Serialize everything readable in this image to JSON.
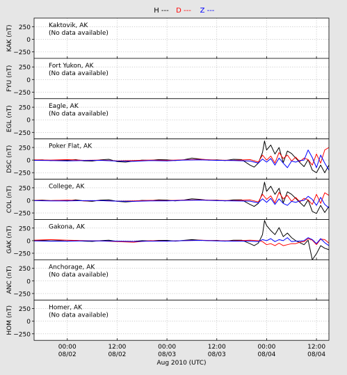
{
  "chart_data": {
    "type": "line",
    "xlabel": "Aug 2010 (UTC)",
    "x_ticks": [
      {
        "time": "00:00",
        "date": "08/02"
      },
      {
        "time": "12:00",
        "date": "08/02"
      },
      {
        "time": "00:00",
        "date": "08/03"
      },
      {
        "time": "12:00",
        "date": "08/03"
      },
      {
        "time": "00:00",
        "date": "08/04"
      },
      {
        "time": "12:00",
        "date": "08/04"
      }
    ],
    "x_range_hours": [
      -8,
      63
    ],
    "legend": [
      {
        "label": "H ---",
        "color": "#000000"
      },
      {
        "label": "D ---",
        "color": "#ff0000"
      },
      {
        "label": "Z ---",
        "color": "#0000ff"
      }
    ],
    "y_ticks": [
      "250",
      "0",
      "−250"
    ],
    "ylim": [
      -380,
      420
    ],
    "stations": [
      {
        "code": "KAK",
        "ylabel": "KAK (nT)",
        "name": "Kaktovik, AK",
        "status": "(No data available)",
        "has_data": false
      },
      {
        "code": "FYU",
        "ylabel": "FYU (nT)",
        "name": "Fort Yukon, AK",
        "status": "(No data available)",
        "has_data": false
      },
      {
        "code": "EGL",
        "ylabel": "EGL (nT)",
        "name": "Eagle, AK",
        "status": "(No data available)",
        "has_data": false
      },
      {
        "code": "DSC",
        "ylabel": "DSC (nT)",
        "name": "Poker Flat, AK",
        "status": "",
        "has_data": true,
        "series": [
          {
            "name": "H",
            "color": "#000000",
            "x": [
              -8,
              -6,
              -4,
              -2,
              0,
              2,
              4,
              6,
              8,
              10,
              12,
              14,
              16,
              18,
              20,
              22,
              24,
              26,
              28,
              30,
              32,
              34,
              36,
              38,
              40,
              42,
              44,
              45,
              46,
              47,
              47.5,
              48,
              49,
              50,
              51,
              52,
              53,
              54,
              55,
              56,
              57,
              58,
              59,
              60,
              61,
              62,
              63
            ],
            "y": [
              0,
              5,
              -10,
              0,
              -5,
              10,
              -15,
              -20,
              5,
              15,
              -30,
              -40,
              -20,
              0,
              -5,
              10,
              5,
              -10,
              5,
              40,
              20,
              0,
              5,
              -10,
              15,
              10,
              -100,
              -140,
              -60,
              150,
              380,
              200,
              300,
              120,
              250,
              -50,
              180,
              130,
              40,
              -50,
              -130,
              10,
              -200,
              -250,
              -100,
              -250,
              -100
            ]
          },
          {
            "name": "D",
            "color": "#ff0000",
            "x": [
              -8,
              -4,
              0,
              4,
              8,
              12,
              16,
              20,
              24,
              28,
              32,
              36,
              40,
              44,
              46,
              47,
              48,
              49,
              50,
              51,
              52,
              53,
              54,
              55,
              56,
              57,
              58,
              59,
              60,
              61,
              62,
              63
            ],
            "y": [
              5,
              0,
              10,
              -5,
              0,
              -15,
              -10,
              0,
              -5,
              5,
              15,
              0,
              -5,
              10,
              -40,
              100,
              0,
              80,
              -60,
              150,
              30,
              100,
              -20,
              60,
              -30,
              40,
              10,
              -100,
              120,
              -60,
              200,
              250
            ]
          },
          {
            "name": "Z",
            "color": "#0000ff",
            "x": [
              -8,
              -4,
              0,
              4,
              8,
              12,
              16,
              20,
              24,
              28,
              32,
              36,
              40,
              44,
              46,
              47,
              48,
              49,
              50,
              51,
              52,
              53,
              54,
              55,
              56,
              57,
              58,
              59,
              60,
              61,
              62,
              63
            ],
            "y": [
              -5,
              -10,
              -15,
              -10,
              -5,
              -20,
              -25,
              -10,
              -15,
              0,
              5,
              -5,
              -10,
              -20,
              -60,
              20,
              -40,
              30,
              -100,
              40,
              -60,
              -150,
              -20,
              -40,
              -10,
              0,
              200,
              50,
              -150,
              100,
              -60,
              -200
            ]
          }
        ]
      },
      {
        "code": "COL",
        "ylabel": "COL (nT)",
        "name": "College, AK",
        "status": "",
        "has_data": true,
        "series": [
          {
            "name": "H",
            "color": "#000000",
            "x": [
              -8,
              -6,
              -4,
              -2,
              0,
              2,
              4,
              6,
              8,
              10,
              12,
              14,
              16,
              18,
              20,
              22,
              24,
              26,
              28,
              30,
              32,
              34,
              36,
              38,
              40,
              42,
              44,
              45,
              46,
              47,
              47.5,
              48,
              49,
              50,
              51,
              52,
              53,
              54,
              55,
              56,
              57,
              58,
              59,
              60,
              61,
              62,
              63
            ],
            "y": [
              0,
              5,
              -5,
              0,
              -10,
              10,
              -10,
              -20,
              5,
              10,
              -20,
              -30,
              -20,
              0,
              -5,
              10,
              5,
              -10,
              5,
              30,
              20,
              0,
              5,
              -10,
              10,
              10,
              -80,
              -120,
              -60,
              150,
              360,
              180,
              280,
              120,
              240,
              -50,
              170,
              120,
              40,
              -40,
              -120,
              10,
              -220,
              -260,
              -100,
              -240,
              -120
            ]
          },
          {
            "name": "D",
            "color": "#ff0000",
            "x": [
              -8,
              -4,
              0,
              4,
              8,
              12,
              16,
              20,
              24,
              28,
              32,
              36,
              40,
              44,
              46,
              47,
              48,
              49,
              50,
              51,
              52,
              53,
              54,
              55,
              56,
              57,
              58,
              59,
              60,
              61,
              62,
              63
            ],
            "y": [
              0,
              -5,
              5,
              -10,
              -5,
              -15,
              -10,
              0,
              -5,
              5,
              10,
              0,
              -5,
              10,
              -30,
              120,
              20,
              90,
              -50,
              160,
              30,
              100,
              -20,
              60,
              -30,
              40,
              10,
              -80,
              120,
              -60,
              150,
              100
            ]
          },
          {
            "name": "Z",
            "color": "#0000ff",
            "x": [
              -8,
              -4,
              0,
              4,
              8,
              12,
              16,
              20,
              24,
              28,
              32,
              36,
              40,
              44,
              46,
              47,
              48,
              49,
              50,
              51,
              52,
              53,
              54,
              55,
              56,
              57,
              58,
              59,
              60,
              61,
              62,
              63
            ],
            "y": [
              -5,
              -10,
              -10,
              -5,
              -5,
              -15,
              -20,
              -10,
              -10,
              0,
              5,
              -5,
              -10,
              -15,
              -50,
              30,
              -40,
              40,
              -80,
              30,
              -60,
              -100,
              -20,
              -40,
              -10,
              0,
              80,
              20,
              -100,
              60,
              -80,
              -150
            ]
          }
        ]
      },
      {
        "code": "GAK",
        "ylabel": "GAK (nT)",
        "name": "Gakona, AK",
        "status": "",
        "has_data": true,
        "series": [
          {
            "name": "H",
            "color": "#000000",
            "x": [
              -8,
              -6,
              -4,
              -2,
              0,
              2,
              4,
              6,
              8,
              10,
              12,
              14,
              16,
              18,
              20,
              22,
              24,
              26,
              28,
              30,
              32,
              34,
              36,
              38,
              40,
              42,
              44,
              45,
              46,
              47,
              47.5,
              48,
              49,
              50,
              51,
              52,
              53,
              54,
              55,
              56,
              57,
              58,
              59,
              60,
              61,
              62,
              63
            ],
            "y": [
              0,
              5,
              -5,
              0,
              -10,
              5,
              -10,
              -15,
              0,
              10,
              -15,
              -20,
              -15,
              0,
              -5,
              5,
              5,
              -10,
              5,
              20,
              10,
              0,
              5,
              -10,
              10,
              10,
              -60,
              -100,
              -50,
              120,
              400,
              300,
              200,
              120,
              260,
              80,
              150,
              60,
              0,
              -40,
              -80,
              10,
              -380,
              -260,
              -100,
              -150,
              -180
            ]
          },
          {
            "name": "D",
            "color": "#ff0000",
            "x": [
              -8,
              -4,
              0,
              4,
              8,
              12,
              16,
              20,
              24,
              28,
              32,
              36,
              40,
              44,
              46,
              47,
              48,
              49,
              50,
              51,
              52,
              53,
              54,
              55,
              56,
              57,
              58,
              59,
              60,
              61,
              62,
              63
            ],
            "y": [
              10,
              20,
              10,
              0,
              -5,
              -20,
              -30,
              0,
              -10,
              0,
              10,
              0,
              -5,
              10,
              0,
              -20,
              -80,
              -60,
              -100,
              -50,
              -100,
              -80,
              -60,
              -60,
              -30,
              -20,
              40,
              10,
              -80,
              30,
              20,
              -50
            ]
          },
          {
            "name": "Z",
            "color": "#0000ff",
            "x": [
              -8,
              -4,
              0,
              4,
              8,
              12,
              16,
              20,
              24,
              28,
              32,
              36,
              40,
              44,
              46,
              47,
              48,
              49,
              50,
              51,
              52,
              53,
              54,
              55,
              56,
              57,
              58,
              59,
              60,
              61,
              62,
              63
            ],
            "y": [
              -5,
              -10,
              -10,
              -5,
              -5,
              -10,
              -15,
              -10,
              -10,
              0,
              5,
              -5,
              -10,
              -10,
              -20,
              20,
              0,
              40,
              -20,
              20,
              0,
              60,
              -20,
              -10,
              -10,
              0,
              60,
              20,
              -60,
              40,
              -40,
              -100
            ]
          }
        ]
      },
      {
        "code": "ANC",
        "ylabel": "ANC (nT)",
        "name": "Anchorage, AK",
        "status": "(No data available)",
        "has_data": false
      },
      {
        "code": "HOM",
        "ylabel": "HOM (nT)",
        "name": "Homer, AK",
        "status": "(No data available)",
        "has_data": false
      }
    ]
  }
}
